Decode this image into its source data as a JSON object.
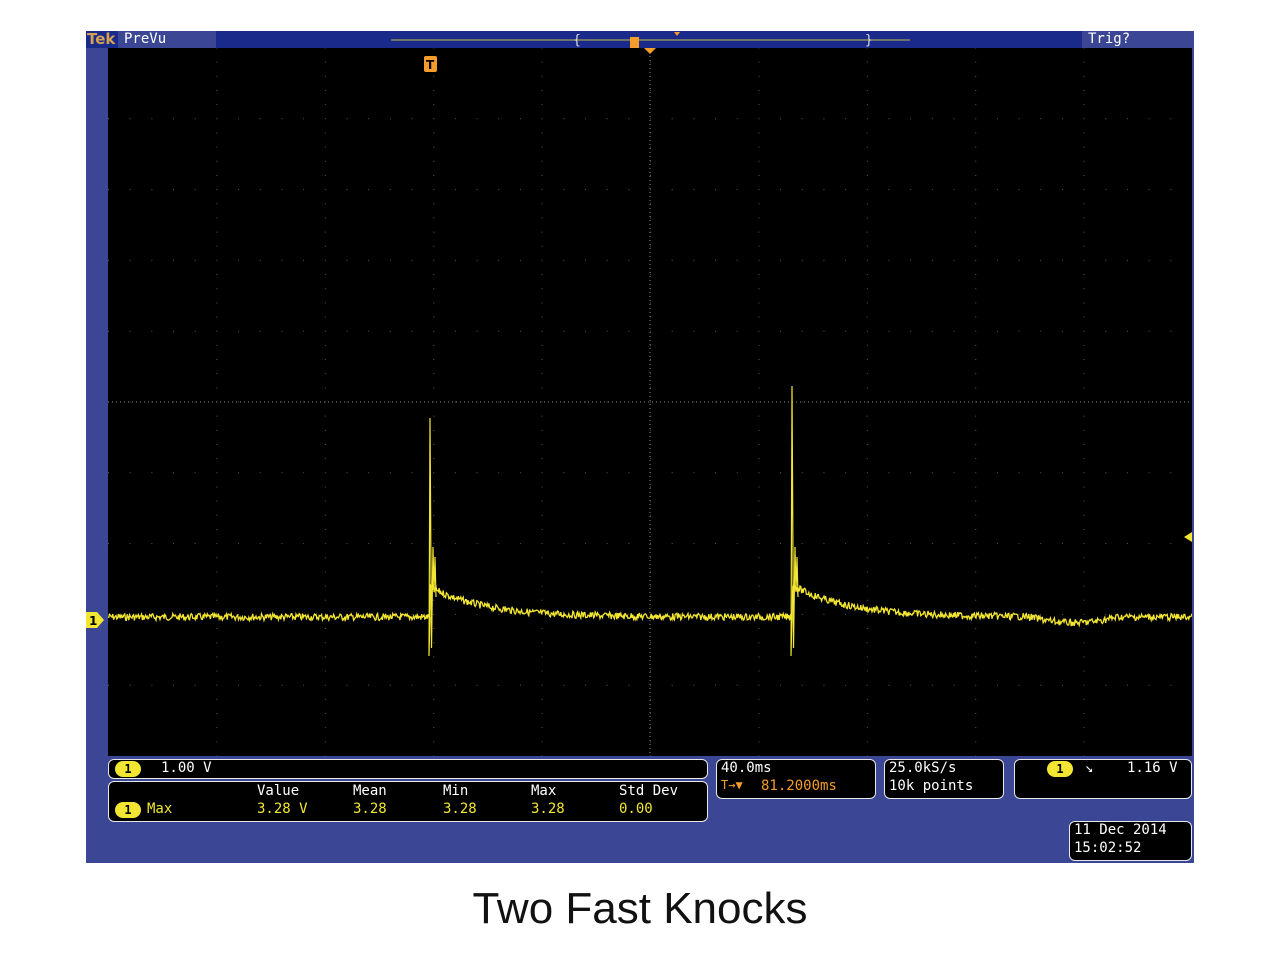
{
  "brand": "Tek",
  "mode": "PreVu",
  "trigger_status": "Trig?",
  "channel": {
    "number": "1",
    "scale": "1.00 V"
  },
  "measurement": {
    "label": "Max",
    "headers": [
      "Value",
      "Mean",
      "Min",
      "Max",
      "Std Dev"
    ],
    "values": [
      "3.28 V",
      "3.28",
      "3.28",
      "3.28",
      "0.00"
    ]
  },
  "timebase": {
    "per_div": "40.0ms",
    "delay": "81.2000ms",
    "delay_prefix": "T→▼"
  },
  "sampling": {
    "rate": "25.0kS/s",
    "points": "10k points"
  },
  "trigger": {
    "channel": "1",
    "slope_glyph": "↘",
    "level": "1.16 V"
  },
  "datetime": {
    "date": "11 Dec  2014",
    "time": "15:02:52"
  },
  "trigger_marker": "T",
  "caption": "Two Fast Knocks",
  "colors": {
    "trace": "#f2e633",
    "trigger": "#f59d2a",
    "frame": "#3b4794",
    "screen": "#000000"
  }
}
